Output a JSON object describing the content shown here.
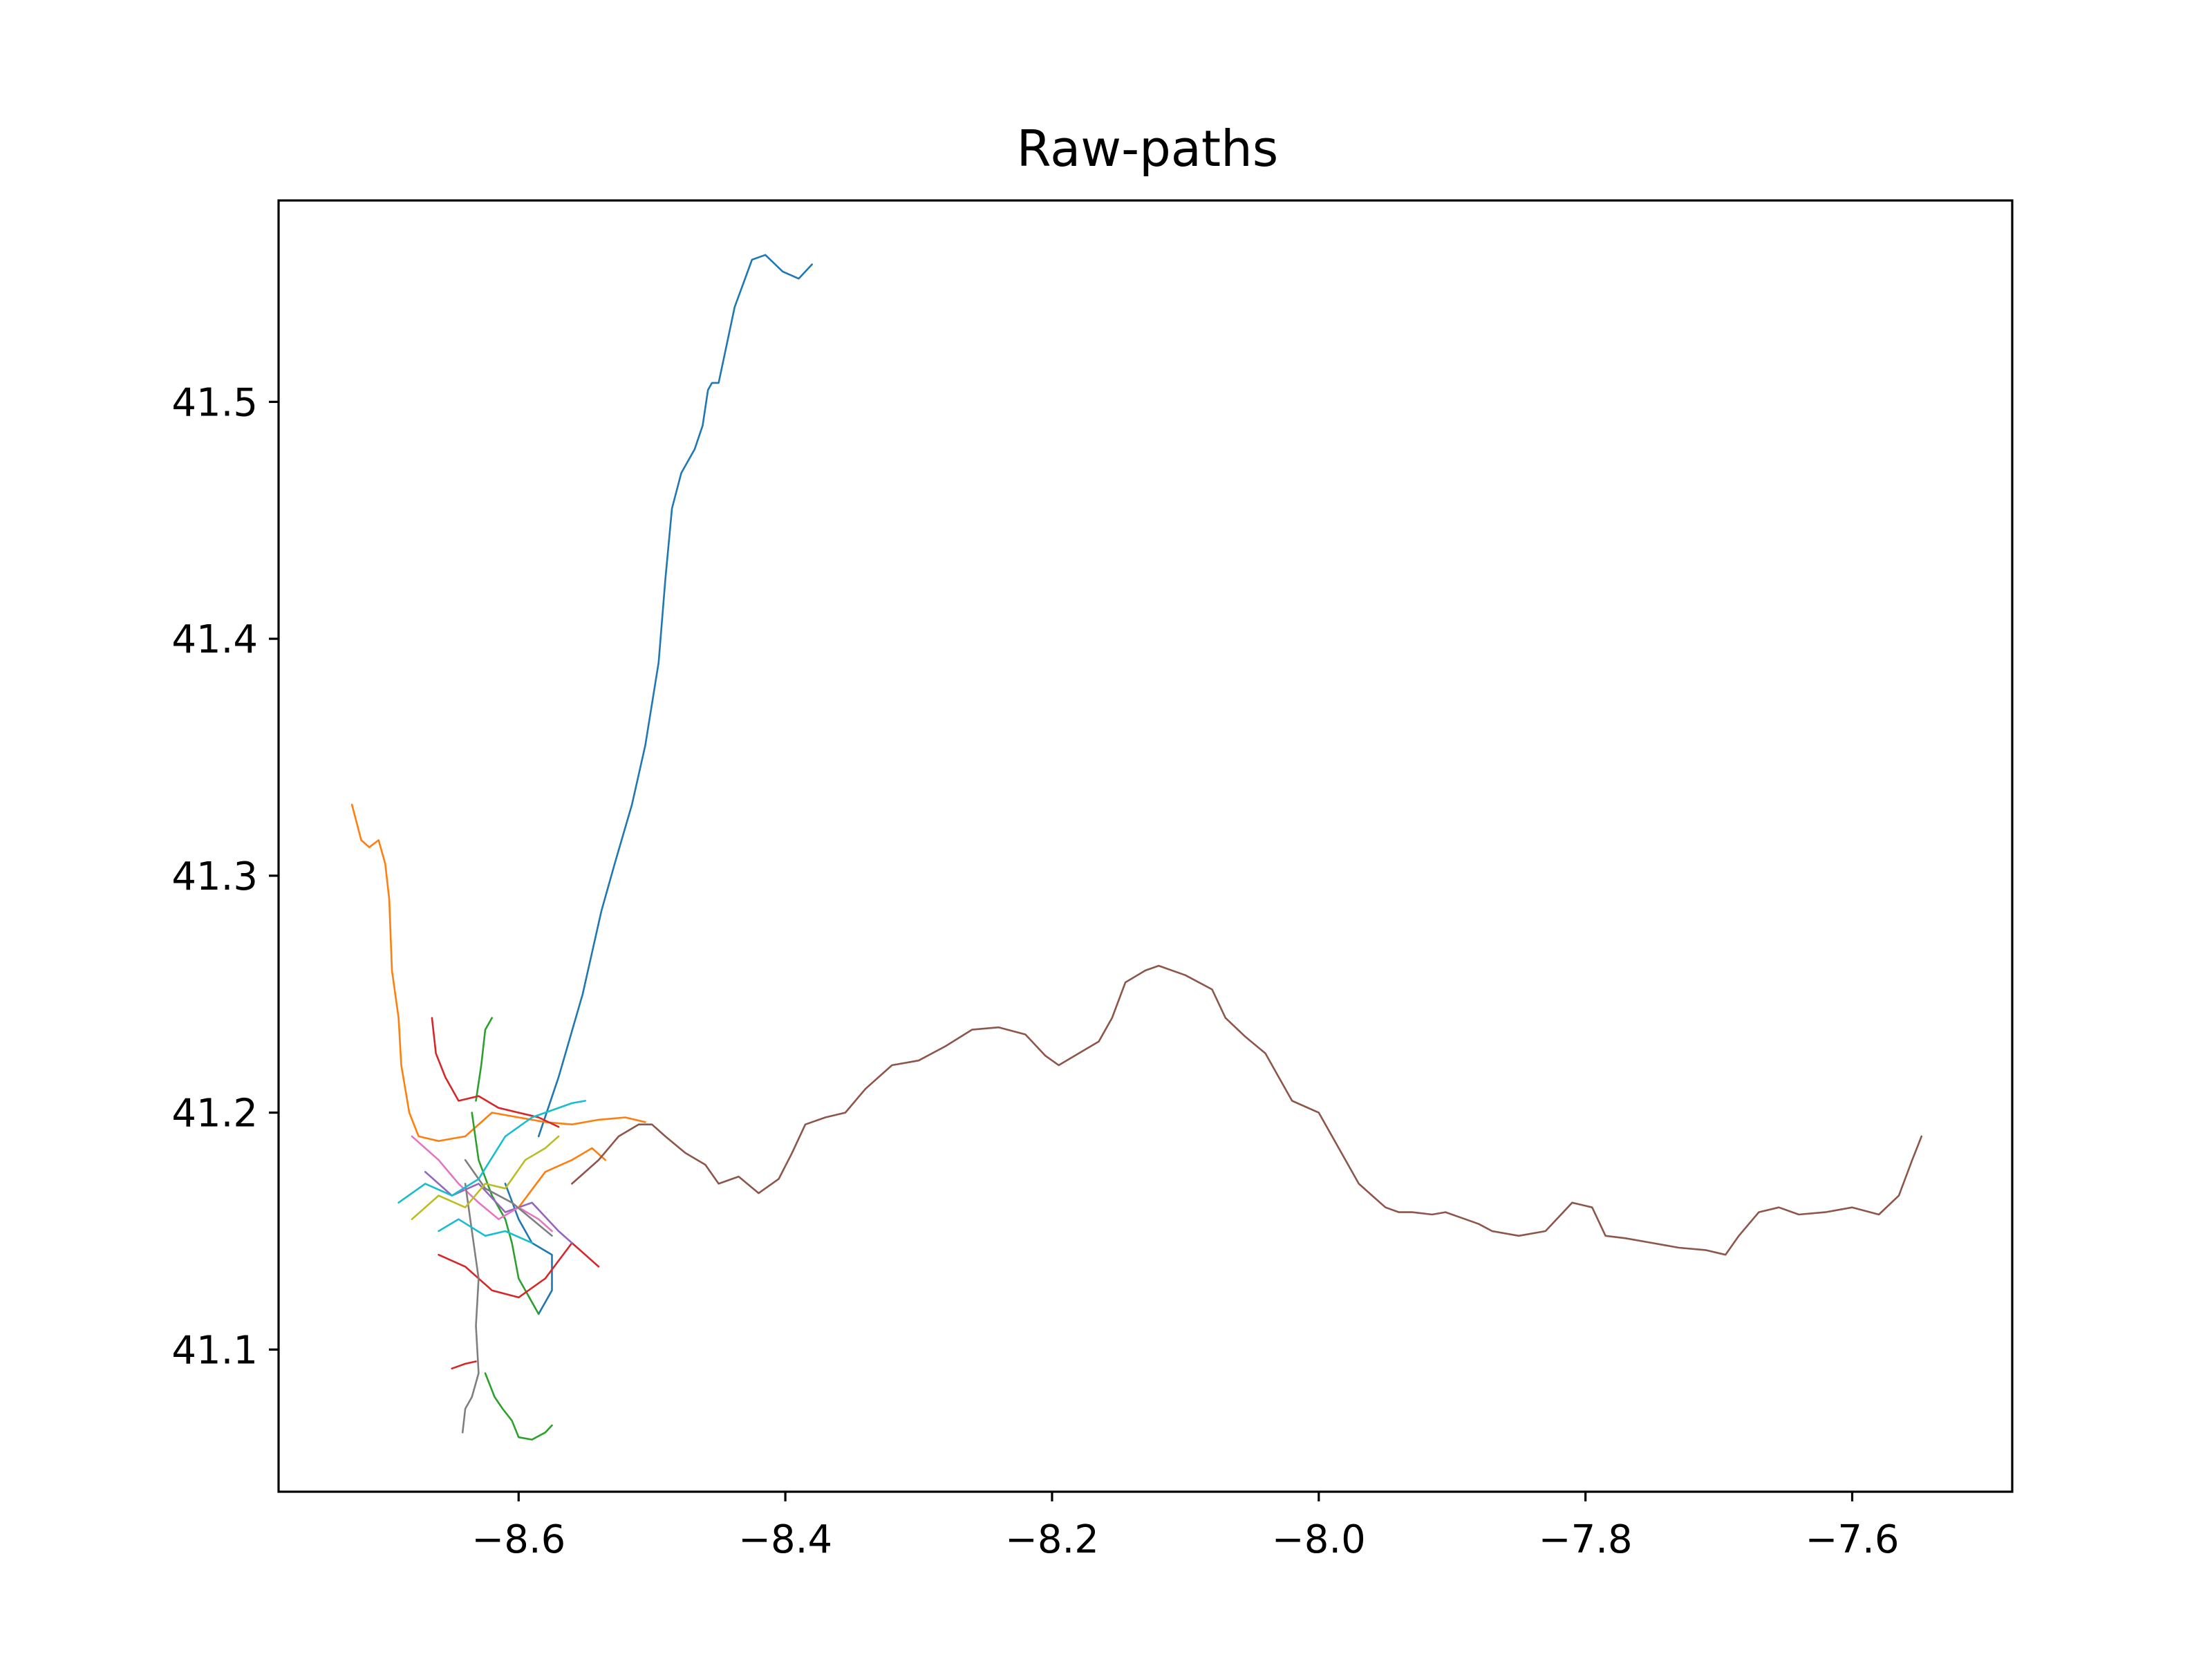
{
  "chart_data": {
    "type": "line",
    "title": "Raw-paths",
    "xlabel": "",
    "ylabel": "",
    "xlim": [
      -8.78,
      -7.48
    ],
    "ylim": [
      41.04,
      41.585
    ],
    "x_ticks": [
      -8.6,
      -8.4,
      -8.2,
      -8.0,
      -7.8,
      -7.6
    ],
    "x_tick_labels": [
      "−8.6",
      "−8.4",
      "−8.2",
      "−8.0",
      "−7.8",
      "−7.6"
    ],
    "y_ticks": [
      41.1,
      41.2,
      41.3,
      41.4,
      41.5
    ],
    "y_tick_labels": [
      "41.1",
      "41.2",
      "41.3",
      "41.4",
      "41.5"
    ],
    "grid": false,
    "legend": "none",
    "series": [
      {
        "color": "#1f77b4",
        "x": [
          -8.585,
          -8.57,
          -8.552,
          -8.538,
          -8.528,
          -8.515,
          -8.505,
          -8.495,
          -8.49,
          -8.485,
          -8.478,
          -8.468,
          -8.462,
          -8.458,
          -8.455,
          -8.45,
          -8.438,
          -8.425,
          -8.415,
          -8.402,
          -8.39,
          -8.38
        ],
        "y": [
          41.19,
          41.215,
          41.25,
          41.285,
          41.305,
          41.33,
          41.355,
          41.39,
          41.425,
          41.455,
          41.47,
          41.48,
          41.49,
          41.505,
          41.508,
          41.508,
          41.54,
          41.56,
          41.562,
          41.555,
          41.552,
          41.558
        ]
      },
      {
        "color": "#1f77b4",
        "x": [
          -8.61,
          -8.6,
          -8.59,
          -8.575,
          -8.575,
          -8.585
        ],
        "y": [
          41.17,
          41.155,
          41.145,
          41.14,
          41.125,
          41.115
        ]
      },
      {
        "color": "#ff7f0e",
        "x": [
          -8.725,
          -8.718,
          -8.712,
          -8.705,
          -8.7,
          -8.697,
          -8.695,
          -8.69,
          -8.688,
          -8.682,
          -8.675,
          -8.66,
          -8.64,
          -8.62,
          -8.6,
          -8.58,
          -8.56,
          -8.54,
          -8.52,
          -8.505
        ],
        "y": [
          41.33,
          41.315,
          41.312,
          41.315,
          41.305,
          41.29,
          41.26,
          41.24,
          41.22,
          41.2,
          41.19,
          41.188,
          41.19,
          41.2,
          41.198,
          41.196,
          41.195,
          41.197,
          41.198,
          41.196
        ]
      },
      {
        "color": "#ff7f0e",
        "x": [
          -8.6,
          -8.58,
          -8.56,
          -8.545,
          -8.535
        ],
        "y": [
          41.16,
          41.175,
          41.18,
          41.185,
          41.18
        ]
      },
      {
        "color": "#2ca02c",
        "x": [
          -8.635,
          -8.63,
          -8.62,
          -8.61,
          -8.605,
          -8.6,
          -8.59,
          -8.585
        ],
        "y": [
          41.2,
          41.18,
          41.165,
          41.155,
          41.145,
          41.13,
          41.12,
          41.115
        ]
      },
      {
        "color": "#2ca02c",
        "x": [
          -8.625,
          -8.618,
          -8.612,
          -8.605,
          -8.6,
          -8.59,
          -8.58,
          -8.575
        ],
        "y": [
          41.09,
          41.08,
          41.075,
          41.07,
          41.063,
          41.062,
          41.065,
          41.068
        ]
      },
      {
        "color": "#2ca02c",
        "x": [
          -8.632,
          -8.628,
          -8.625,
          -8.62
        ],
        "y": [
          41.205,
          41.22,
          41.235,
          41.24
        ]
      },
      {
        "color": "#d62728",
        "x": [
          -8.665,
          -8.662,
          -8.655,
          -8.645,
          -8.63,
          -8.615,
          -8.6,
          -8.585,
          -8.57
        ],
        "y": [
          41.24,
          41.225,
          41.215,
          41.205,
          41.207,
          41.202,
          41.2,
          41.198,
          41.194
        ]
      },
      {
        "color": "#d62728",
        "x": [
          -8.66,
          -8.64,
          -8.62,
          -8.6,
          -8.58,
          -8.56,
          -8.55,
          -8.54
        ],
        "y": [
          41.14,
          41.135,
          41.125,
          41.122,
          41.13,
          41.145,
          41.14,
          41.135
        ]
      },
      {
        "color": "#d62728",
        "x": [
          -8.65,
          -8.64,
          -8.632
        ],
        "y": [
          41.092,
          41.094,
          41.095
        ]
      },
      {
        "color": "#9467bd",
        "x": [
          -8.67,
          -8.65,
          -8.63,
          -8.61,
          -8.59,
          -8.57,
          -8.56
        ],
        "y": [
          41.175,
          41.165,
          41.17,
          41.158,
          41.162,
          41.15,
          41.145
        ]
      },
      {
        "color": "#8c564b",
        "x": [
          -8.56,
          -8.54,
          -8.525,
          -8.51,
          -8.5,
          -8.49,
          -8.475,
          -8.46,
          -8.45,
          -8.435,
          -8.42,
          -8.405,
          -8.395,
          -8.385,
          -8.37,
          -8.355,
          -8.34,
          -8.32,
          -8.3,
          -8.28,
          -8.26,
          -8.24,
          -8.22,
          -8.205,
          -8.195,
          -8.18,
          -8.165,
          -8.155,
          -8.145,
          -8.13,
          -8.12,
          -8.1,
          -8.08,
          -8.07,
          -8.055,
          -8.04,
          -8.03,
          -8.02,
          -8.0,
          -7.98,
          -7.97,
          -7.96,
          -7.95,
          -7.94,
          -7.93,
          -7.915,
          -7.905,
          -7.89,
          -7.88,
          -7.87,
          -7.85,
          -7.83,
          -7.81,
          -7.795,
          -7.785,
          -7.77,
          -7.75,
          -7.73,
          -7.71,
          -7.695,
          -7.685,
          -7.67,
          -7.655,
          -7.64,
          -7.62,
          -7.6,
          -7.58,
          -7.565,
          -7.555,
          -7.548
        ],
        "y": [
          41.17,
          41.18,
          41.19,
          41.195,
          41.195,
          41.19,
          41.183,
          41.178,
          41.17,
          41.173,
          41.166,
          41.172,
          41.183,
          41.195,
          41.198,
          41.2,
          41.21,
          41.22,
          41.222,
          41.228,
          41.235,
          41.236,
          41.233,
          41.224,
          41.22,
          41.225,
          41.23,
          41.24,
          41.255,
          41.26,
          41.262,
          41.258,
          41.252,
          41.24,
          41.232,
          41.225,
          41.215,
          41.205,
          41.2,
          41.18,
          41.17,
          41.165,
          41.16,
          41.158,
          41.158,
          41.157,
          41.158,
          41.155,
          41.153,
          41.15,
          41.148,
          41.15,
          41.162,
          41.16,
          41.148,
          41.147,
          41.145,
          41.143,
          41.142,
          41.14,
          41.148,
          41.158,
          41.16,
          41.157,
          41.158,
          41.16,
          41.157,
          41.165,
          41.18,
          41.19
        ]
      },
      {
        "color": "#e377c2",
        "x": [
          -8.68,
          -8.66,
          -8.645,
          -8.63,
          -8.615,
          -8.6,
          -8.585,
          -8.575
        ],
        "y": [
          41.19,
          41.18,
          41.17,
          41.162,
          41.155,
          41.16,
          41.155,
          41.15
        ]
      },
      {
        "color": "#7f7f7f",
        "x": [
          -8.64,
          -8.635,
          -8.63,
          -8.632,
          -8.63,
          -8.635,
          -8.64,
          -8.642
        ],
        "y": [
          41.17,
          41.15,
          41.13,
          41.11,
          41.09,
          41.08,
          41.075,
          41.065
        ]
      },
      {
        "color": "#7f7f7f",
        "x": [
          -8.64,
          -8.625,
          -8.605,
          -8.59,
          -8.575
        ],
        "y": [
          41.18,
          41.168,
          41.162,
          41.155,
          41.148
        ]
      },
      {
        "color": "#bcbd22",
        "x": [
          -8.68,
          -8.66,
          -8.64,
          -8.625,
          -8.61,
          -8.595,
          -8.58,
          -8.57
        ],
        "y": [
          41.155,
          41.165,
          41.16,
          41.17,
          41.168,
          41.18,
          41.185,
          41.19
        ]
      },
      {
        "color": "#17becf",
        "x": [
          -8.69,
          -8.67,
          -8.65,
          -8.63,
          -8.61,
          -8.59,
          -8.58,
          -8.56,
          -8.55
        ],
        "y": [
          41.162,
          41.17,
          41.165,
          41.172,
          41.19,
          41.198,
          41.2,
          41.204,
          41.205
        ]
      },
      {
        "color": "#17becf",
        "x": [
          -8.66,
          -8.645,
          -8.625,
          -8.61,
          -8.59
        ],
        "y": [
          41.15,
          41.155,
          41.148,
          41.15,
          41.145
        ]
      }
    ]
  }
}
